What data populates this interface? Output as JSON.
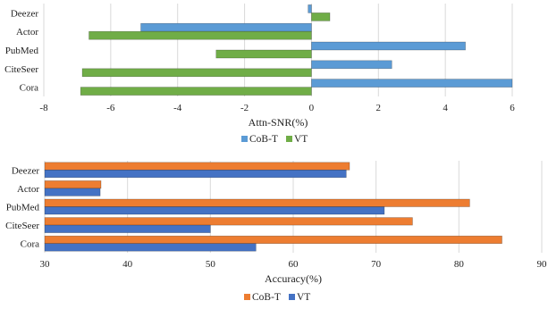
{
  "chart_data": [
    {
      "type": "bar",
      "orientation": "horizontal",
      "categories": [
        "Cora",
        "CiteSeer",
        "PubMed",
        "Actor",
        "Deezer"
      ],
      "series": [
        {
          "name": "CoB-T",
          "values": [
            6.0,
            2.4,
            4.6,
            -5.1,
            -0.1
          ]
        },
        {
          "name": "VT",
          "values": [
            -6.9,
            -6.85,
            -2.85,
            -6.65,
            0.55
          ]
        }
      ],
      "xlabel": "Attn-SNR(%)",
      "ylabel": "",
      "xlim": [
        -8,
        6
      ],
      "xticks": [
        "-8",
        "-6",
        "-4",
        "-2",
        "0",
        "2",
        "4",
        "6"
      ],
      "grid": true,
      "legend_position": "bottom-center",
      "colors": {
        "CoB-T": "#5B9BD5",
        "VT": "#70AD47"
      }
    },
    {
      "type": "bar",
      "orientation": "horizontal",
      "categories": [
        "Cora",
        "CiteSeer",
        "PubMed",
        "Actor",
        "Deezer"
      ],
      "series": [
        {
          "name": "CoB-T",
          "values": [
            85.2,
            74.4,
            81.3,
            36.8,
            66.8
          ]
        },
        {
          "name": "VT",
          "values": [
            55.5,
            50.0,
            71.0,
            36.7,
            66.4
          ]
        }
      ],
      "xlabel": "Accuracy(%)",
      "ylabel": "",
      "xlim": [
        30,
        90
      ],
      "xticks": [
        "30",
        "40",
        "50",
        "60",
        "70",
        "80",
        "90"
      ],
      "grid": true,
      "legend_position": "bottom-center",
      "colors": {
        "CoB-T": "#ED7D31",
        "VT": "#4472C4"
      }
    }
  ]
}
